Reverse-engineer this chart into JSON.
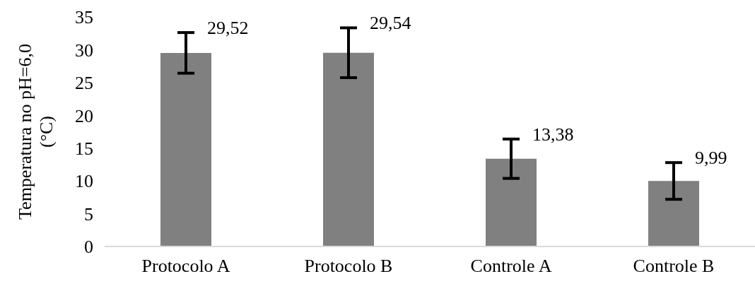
{
  "chart_data": {
    "type": "bar",
    "ylabel": "Temperatura no pH=6,0 (°C)",
    "categories": [
      "Protocolo A",
      "Protocolo B",
      "Controle A",
      "Controle B"
    ],
    "values": [
      29.52,
      29.54,
      13.38,
      9.99
    ],
    "errors": [
      3.1,
      3.8,
      3.0,
      2.8
    ],
    "value_labels": [
      "29,52",
      "29,54",
      "13,38",
      "9,99"
    ],
    "color": "#808080",
    "ylim": [
      0,
      35
    ],
    "yticks": [
      0,
      5,
      10,
      15,
      20,
      25,
      30,
      35
    ],
    "grid": false,
    "legend": false
  }
}
